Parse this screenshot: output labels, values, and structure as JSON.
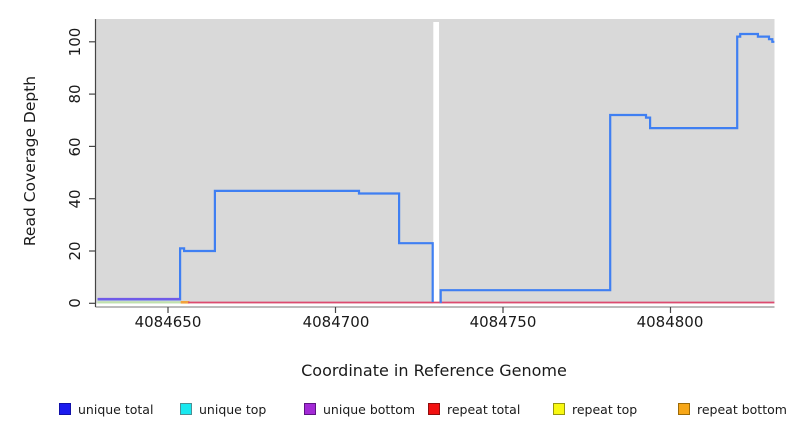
{
  "chart_data": {
    "type": "line",
    "subtype": "step-coverage",
    "title": "",
    "xlabel": "Coordinate in Reference Genome",
    "ylabel": "Read Coverage Depth",
    "x_ticks": [
      4084650,
      4084700,
      4084750,
      4084800
    ],
    "x_tick_labels": [
      "4084650",
      "4084700",
      "4084750",
      "4084800"
    ],
    "y_ticks": [
      0,
      20,
      40,
      60,
      80,
      100
    ],
    "y_tick_labels": [
      "0",
      "20",
      "40",
      "60",
      "80",
      "100"
    ],
    "xlim": [
      4084628,
      4084831
    ],
    "ylim": [
      0,
      108
    ],
    "grid": false,
    "plot_background": "#d9d9d9",
    "gap": {
      "from": 4084729.2,
      "to": 4084730.9
    },
    "series": [
      {
        "name": "unique top",
        "style": "hline",
        "color": "#bfe2ad",
        "width": 2.0,
        "value": 0.35,
        "from": 4084629,
        "to": 4084655
      },
      {
        "name": "repeat bottom",
        "style": "hline",
        "color": "#f2a33c",
        "width": 2.6,
        "value": 0.4,
        "from": 4084653.8,
        "to": 4084656.4
      },
      {
        "name": "repeat total",
        "style": "hline",
        "color": "#dd4a6f",
        "width": 1.7,
        "value": 0.3,
        "from": 4084656,
        "to": 4084831
      },
      {
        "name": "unique total",
        "style": "step",
        "color": "#3f7ff2",
        "width": 2.2,
        "parts": [
          {
            "points": [
              [
                4084629,
                1.5
              ],
              [
                4084653.6,
                21
              ],
              [
                4084654.8,
                20
              ],
              [
                4084664,
                43
              ],
              [
                4084707,
                42
              ],
              [
                4084719,
                23
              ],
              [
                4084729,
                0.5
              ]
            ],
            "end": 4084729
          },
          {
            "points": [
              [
                4084731.1,
                0.5
              ],
              [
                4084731.4,
                5
              ],
              [
                4084782,
                72
              ],
              [
                4084792.7,
                71
              ],
              [
                4084793.9,
                67
              ],
              [
                4084819.9,
                102
              ],
              [
                4084820.8,
                103
              ],
              [
                4084826.1,
                102
              ],
              [
                4084829.4,
                101
              ],
              [
                4084830.4,
                100
              ]
            ],
            "end": 4084831
          }
        ]
      },
      {
        "name": "unique bottom",
        "style": "hline",
        "color": "#6f5ae8",
        "width": 2.4,
        "value": 1.6,
        "from": 4084629,
        "to": 4084653.6
      }
    ],
    "legend_position": "bottom"
  },
  "legend": {
    "items": [
      {
        "label": "unique total",
        "fill": "#1b1bee",
        "border": "#1111a8"
      },
      {
        "label": "unique top",
        "fill": "#19e8ef",
        "border": "#4d8f94"
      },
      {
        "label": "unique bottom",
        "fill": "#a32ad6",
        "border": "#5e1483"
      },
      {
        "label": "repeat total",
        "fill": "#f21111",
        "border": "#8f0d0d"
      },
      {
        "label": "repeat top",
        "fill": "#f8f811",
        "border": "#97970e"
      },
      {
        "label": "repeat bottom",
        "fill": "#f7a718",
        "border": "#9c6a07"
      }
    ]
  }
}
